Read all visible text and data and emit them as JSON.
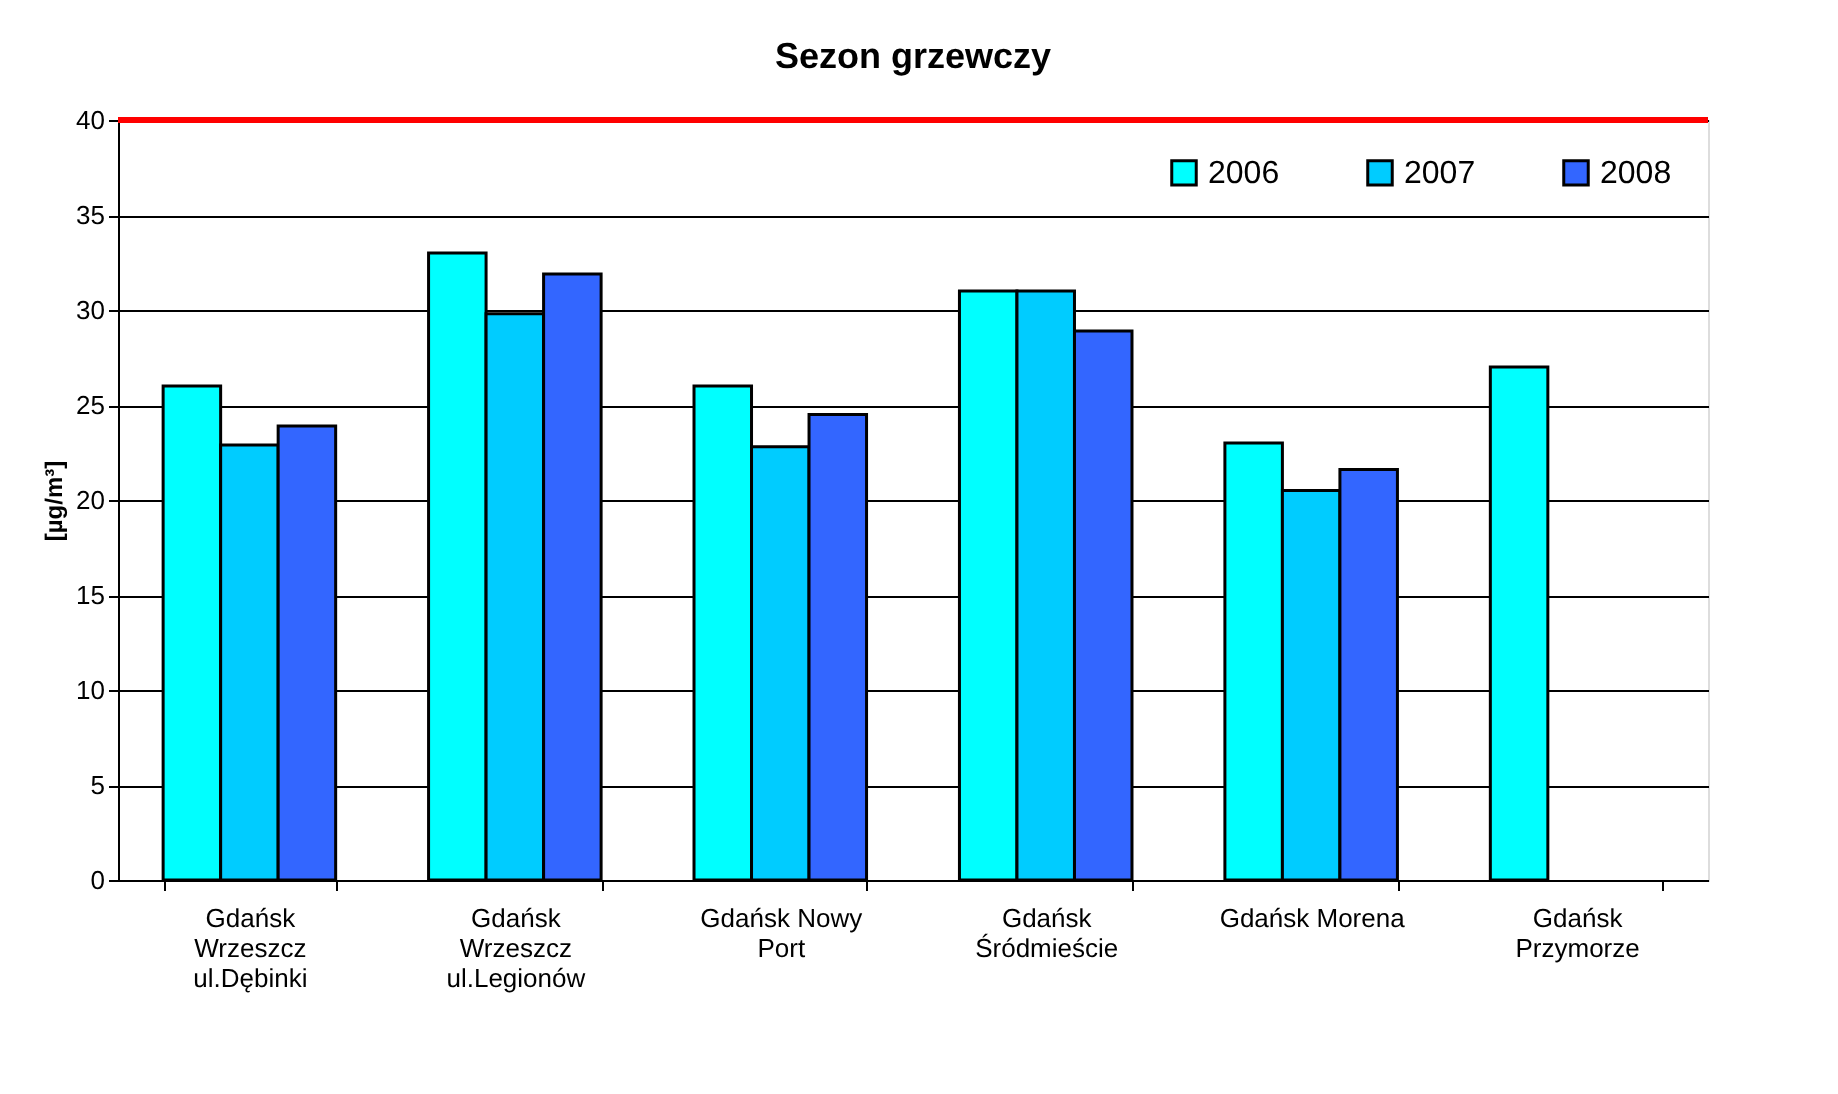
{
  "chart_data": {
    "type": "bar",
    "title": "Sezon grzewczy",
    "ylabel": "[µg/m³]",
    "categories": [
      "Gdańsk\nWrzeszcz\nul.Dębinki",
      "Gdańsk\nWrzeszcz\nul.Legionów",
      "Gdańsk Nowy\nPort",
      "Gdańsk\nŚródmieście",
      "Gdańsk Morena",
      "Gdańsk\nPrzymorze"
    ],
    "series": [
      {
        "name": "2006",
        "color": "#00ffff",
        "values": [
          26,
          33,
          26,
          31,
          23,
          27
        ]
      },
      {
        "name": "2007",
        "color": "#00ccff",
        "values": [
          22.9,
          29.8,
          22.8,
          31,
          20.5,
          null
        ]
      },
      {
        "name": "2008",
        "color": "#3366ff",
        "values": [
          23.9,
          31.9,
          24.5,
          28.9,
          21.6,
          null
        ]
      }
    ],
    "ylim": [
      0,
      40
    ],
    "yticks": [
      0,
      5,
      10,
      15,
      20,
      25,
      30,
      35,
      40
    ],
    "ref_lines": [
      {
        "axis": "y",
        "value": 40,
        "color": "#ff0000"
      }
    ],
    "grid": "y",
    "legend": "top right"
  }
}
